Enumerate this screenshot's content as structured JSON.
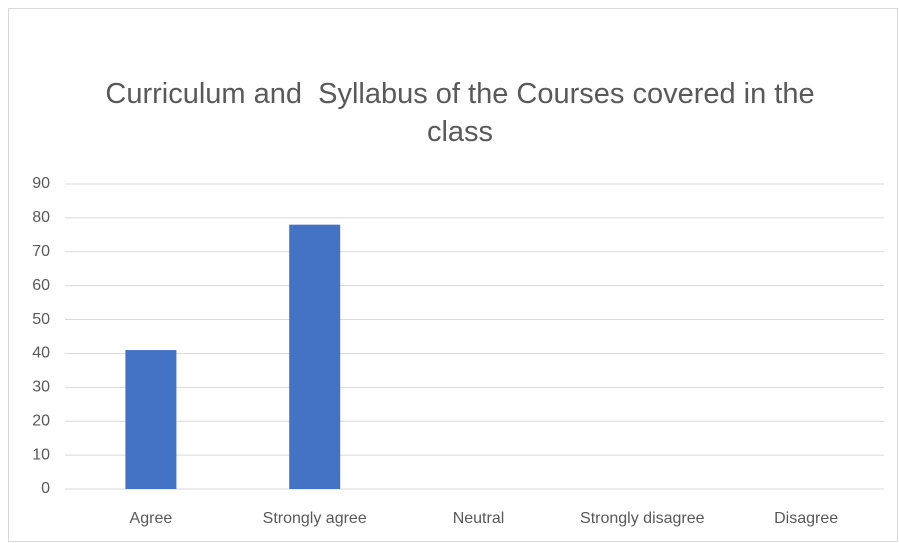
{
  "chart_data": {
    "type": "bar",
    "title": "Curriculum and  Syllabus of the Courses covered in the class",
    "categories": [
      "Agree",
      "Strongly agree",
      "Neutral",
      "Strongly disagree",
      "Disagree"
    ],
    "values": [
      41,
      78,
      0,
      0,
      0
    ],
    "color": "#4472c4",
    "ylim": [
      0,
      90
    ],
    "yticks": [
      0,
      10,
      20,
      30,
      40,
      50,
      60,
      70,
      80,
      90
    ],
    "grid": true
  }
}
